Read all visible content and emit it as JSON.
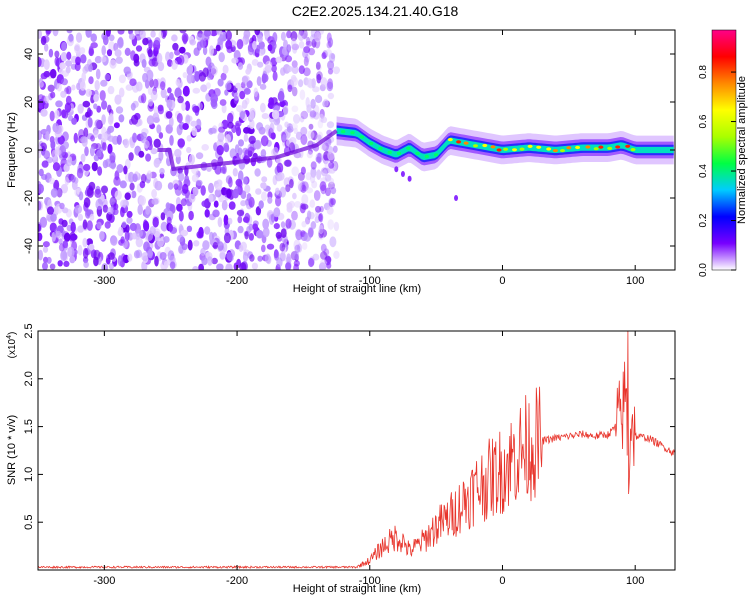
{
  "figure": {
    "title": "C2E2.2025.134.21.40.G18"
  },
  "chart_data": [
    {
      "type": "heatmap",
      "xlabel": "Height of straight line (km)",
      "ylabel": "Frequency (Hz)",
      "xlim": [
        -350,
        130
      ],
      "ylim": [
        -50,
        50
      ],
      "x_ticks": [
        -300,
        -200,
        -100,
        0,
        100
      ],
      "y_ticks": [
        -40,
        -20,
        0,
        20,
        40
      ],
      "noise_region_x": [
        -350,
        -125
      ],
      "ridge": {
        "description_free_points": true,
        "x": [
          -250,
          -200,
          -170,
          -140,
          -125,
          -110,
          -100,
          -90,
          -80,
          -70,
          -60,
          -50,
          -40,
          -30,
          -20,
          -10,
          0,
          20,
          40,
          60,
          80,
          90,
          100,
          130
        ],
        "y": [
          -8,
          -5,
          -3,
          2,
          8,
          7,
          3,
          0,
          -2,
          1,
          -3,
          -2,
          4,
          3,
          2,
          1,
          0,
          1,
          0,
          1,
          1,
          2,
          0,
          0
        ]
      },
      "colorbar": {
        "label": "Normalized spectral amplitude",
        "lim": [
          0,
          0.97
        ],
        "ticks": [
          0.0,
          0.2,
          0.4,
          0.6,
          0.8
        ],
        "tick_labels": [
          "0.0",
          "0.2",
          "0.4",
          "0.6",
          "0.8"
        ],
        "colors": [
          "#ffffff",
          "#7700ff",
          "#0000ff",
          "#00ccff",
          "#00ff44",
          "#aaff00",
          "#ffff00",
          "#ff8800",
          "#ff0000",
          "#ff0088"
        ]
      }
    },
    {
      "type": "line",
      "xlabel": "Height of straight line (km)",
      "ylabel": "SNR (10 * v/v)",
      "y_multiplier": "(x10",
      "y_multiplier_exp": "4",
      "y_multiplier_close": ")",
      "xlim": [
        -350,
        130
      ],
      "ylim": [
        0,
        2.5
      ],
      "x_ticks": [
        -300,
        -200,
        -100,
        0,
        100
      ],
      "y_ticks": [
        0.5,
        1.0,
        1.5,
        2.0,
        2.5
      ],
      "y_tick_labels": [
        "0.5",
        "1.0",
        "1.5",
        "2.0",
        "2.5"
      ],
      "series": [
        {
          "color": "#e8342b",
          "x": [
            -350,
            -300,
            -250,
            -200,
            -150,
            -110,
            -100,
            -90,
            -80,
            -75,
            -70,
            -60,
            -50,
            -40,
            -30,
            -20,
            -10,
            0,
            10,
            20,
            30,
            40,
            50,
            60,
            70,
            80,
            85,
            90,
            93,
            95,
            97,
            100,
            110,
            120,
            130
          ],
          "y": [
            0.03,
            0.03,
            0.03,
            0.03,
            0.03,
            0.03,
            0.1,
            0.25,
            0.35,
            0.3,
            0.2,
            0.3,
            0.45,
            0.55,
            0.7,
            0.85,
            0.95,
            1.05,
            1.2,
            1.3,
            1.35,
            1.38,
            1.4,
            1.42,
            1.4,
            1.42,
            1.5,
            1.6,
            1.9,
            1.0,
            1.6,
            1.4,
            1.38,
            1.3,
            1.22
          ]
        }
      ]
    }
  ]
}
